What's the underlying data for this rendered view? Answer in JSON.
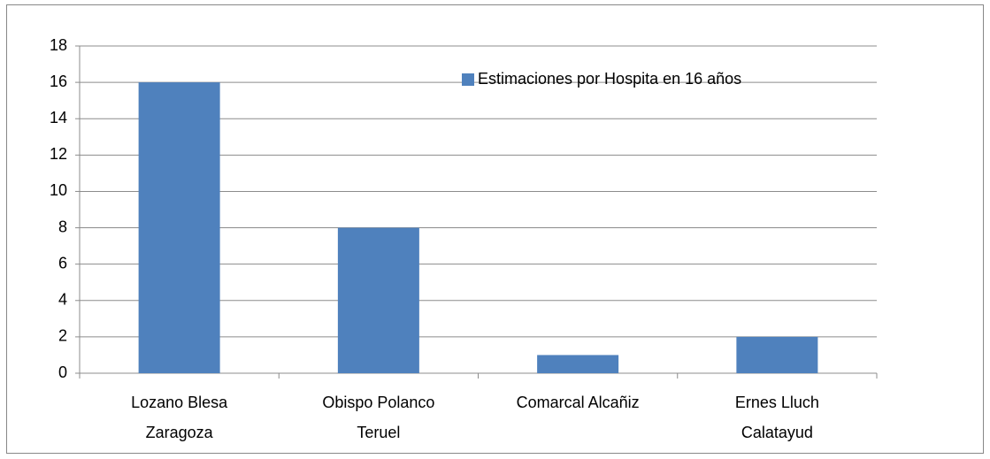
{
  "chart_data": {
    "type": "bar",
    "categories": [
      "Lozano Blesa Zaragoza",
      "Obispo Polanco Teruel",
      "Comarcal Alcañiz",
      "Ernes Lluch Calatayud"
    ],
    "series": [
      {
        "name": "Estimaciones por Hospita en 16 años",
        "color": "#4f81bd",
        "values": [
          16,
          8,
          1,
          2
        ]
      }
    ],
    "ylim": [
      0,
      18
    ],
    "yticks": [
      0,
      2,
      4,
      6,
      8,
      10,
      12,
      14,
      16,
      18
    ],
    "grid": true,
    "legend": "top-right"
  }
}
